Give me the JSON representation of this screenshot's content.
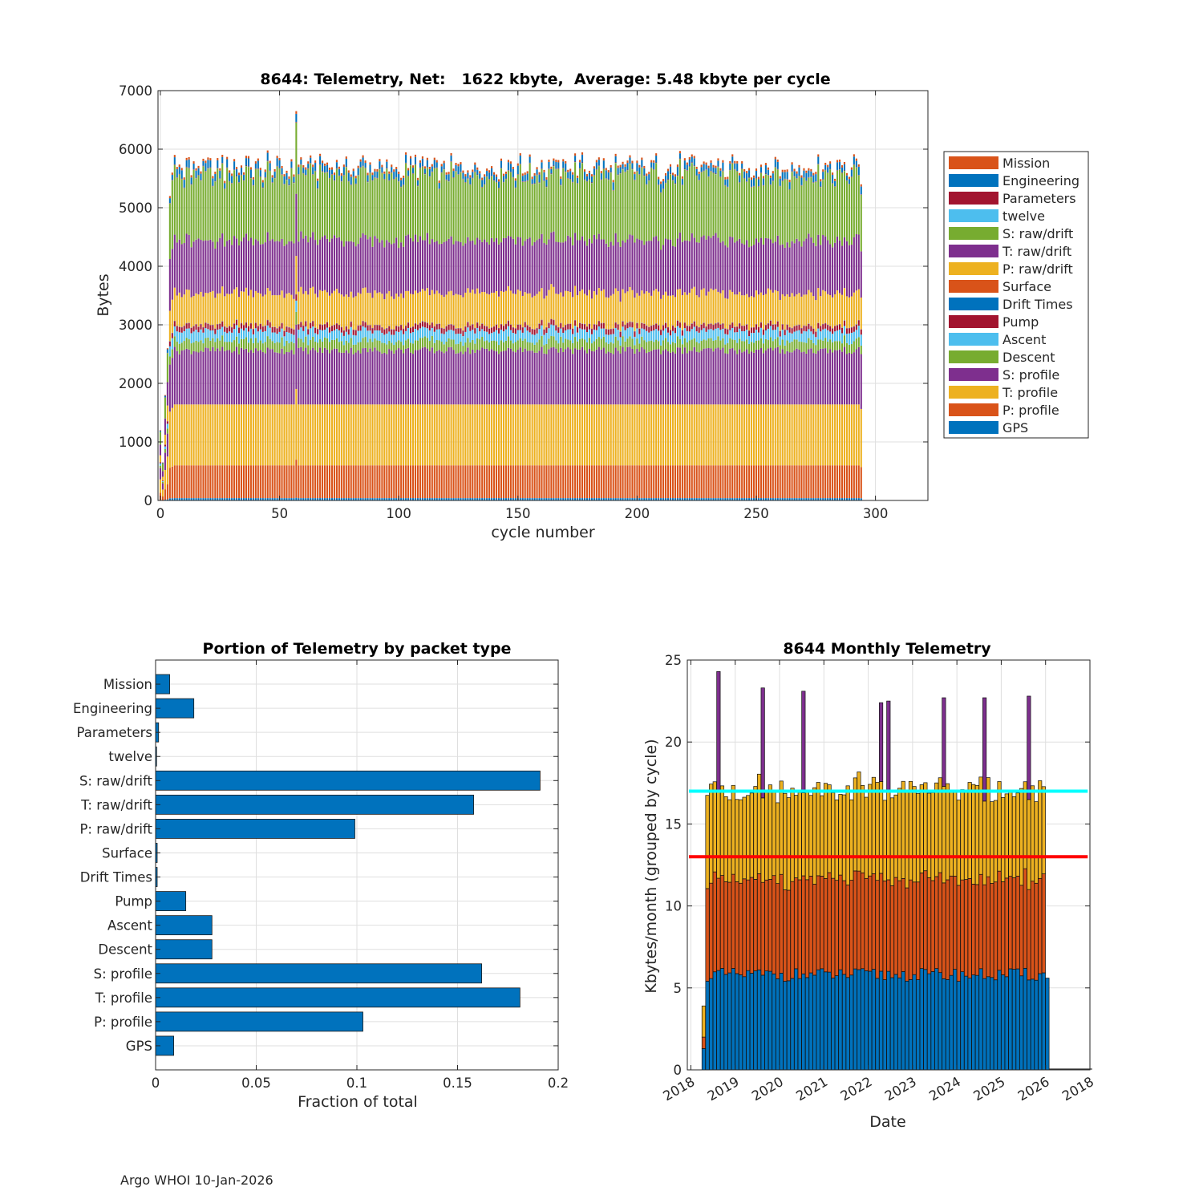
{
  "colors": {
    "blue": "#0072BD",
    "orange": "#D95319",
    "yellow": "#EDB120",
    "purple": "#7E2F8E",
    "green": "#77AC30",
    "cyan": "#4DBEEE",
    "maroon": "#A2142F",
    "monthly_cyan_line": "#00FFFF",
    "monthly_red_line": "#FF0000"
  },
  "footer": {
    "text": "Argo WHOI 10-Jan-2026"
  },
  "chart_data": [
    {
      "id": "telemetry_per_cycle",
      "type": "bar",
      "stacked": true,
      "title": "8644: Telemetry, Net:   1622 kbyte,  Average: 5.48 kbyte per cycle",
      "xlabel": "cycle number",
      "ylabel": "Bytes",
      "xlim": [
        -1,
        322
      ],
      "ylim": [
        0,
        7000
      ],
      "xticks": [
        0,
        50,
        100,
        150,
        200,
        250,
        300
      ],
      "yticks": [
        0,
        1000,
        2000,
        3000,
        4000,
        5000,
        6000,
        7000
      ],
      "grid": true,
      "legend_position": "outside-right",
      "n_cycles": 294,
      "series_order_bottom_to_top": [
        "GPS",
        "P: profile",
        "T: profile",
        "S: profile",
        "Descent",
        "Ascent",
        "Pump",
        "Drift Times",
        "Surface",
        "P: raw/drift",
        "T: raw/drift",
        "S: raw/drift",
        "twelve",
        "Parameters",
        "Engineering",
        "Mission"
      ],
      "legend": [
        {
          "label": "Mission",
          "color": "#D95319"
        },
        {
          "label": "Engineering",
          "color": "#0072BD"
        },
        {
          "label": "Parameters",
          "color": "#A2142F"
        },
        {
          "label": "twelve",
          "color": "#4DBEEE"
        },
        {
          "label": "S: raw/drift",
          "color": "#77AC30"
        },
        {
          "label": "T: raw/drift",
          "color": "#7E2F8E"
        },
        {
          "label": "P: raw/drift",
          "color": "#EDB120"
        },
        {
          "label": "Surface",
          "color": "#D95319"
        },
        {
          "label": "Drift Times",
          "color": "#0072BD"
        },
        {
          "label": "Pump",
          "color": "#A2142F"
        },
        {
          "label": "Ascent",
          "color": "#4DBEEE"
        },
        {
          "label": "Descent",
          "color": "#77AC30"
        },
        {
          "label": "S: profile",
          "color": "#7E2F8E"
        },
        {
          "label": "T: profile",
          "color": "#EDB120"
        },
        {
          "label": "P: profile",
          "color": "#D95319"
        },
        {
          "label": "GPS",
          "color": "#0072BD"
        }
      ],
      "typical_segment_bytes": {
        "GPS": 40,
        "P: profile": 560,
        "T: profile": 1040,
        "S: profile": 930,
        "Descent": 165,
        "Ascent": 165,
        "Pump": 90,
        "Drift Times": 4,
        "Surface": 4,
        "P: raw/drift": 560,
        "T: raw/drift": 900,
        "S: raw/drift": 1080,
        "twelve": 3,
        "Parameters": 8,
        "Engineering": 110,
        "Mission": 40
      },
      "approx_cycle_totals": {
        "early_cycles": [
          [
            0,
            1200
          ],
          [
            1,
            650
          ],
          [
            2,
            1800
          ],
          [
            3,
            2600
          ],
          [
            4,
            5200
          ],
          [
            5,
            5600
          ]
        ],
        "typical_range": [
          5000,
          6000
        ],
        "peak": [
          57,
          6650
        ],
        "last_cycle": [
          294,
          5400
        ]
      }
    },
    {
      "id": "portion_by_packet_type",
      "type": "bar",
      "orientation": "horizontal",
      "title": "Portion of Telemetry by packet type",
      "xlabel": "Fraction of total",
      "ylabel": "",
      "xlim": [
        0,
        0.2
      ],
      "xticks": [
        0,
        0.05,
        0.1,
        0.15,
        0.2
      ],
      "xtick_labels": [
        "0",
        "0.05",
        "0.1",
        "0.15",
        "0.2"
      ],
      "grid": true,
      "color": "#0072BD",
      "categories": [
        "Mission",
        "Engineering",
        "Parameters",
        "twelve",
        "S: raw/drift",
        "T: raw/drift",
        "P: raw/drift",
        "Surface",
        "Drift Times",
        "Pump",
        "Ascent",
        "Descent",
        "S: profile",
        "T: profile",
        "P: profile",
        "GPS"
      ],
      "values": [
        0.007,
        0.019,
        0.0015,
        0.0005,
        0.191,
        0.158,
        0.099,
        0.0008,
        0.0008,
        0.015,
        0.028,
        0.028,
        0.162,
        0.181,
        0.103,
        0.009
      ]
    },
    {
      "id": "monthly_telemetry",
      "type": "bar",
      "stacked": true,
      "title": "8644 Monthly Telemetry",
      "xlabel": "Date",
      "ylabel": "Kbytes/month (grouped by cycle)",
      "ylim": [
        0,
        25
      ],
      "yticks": [
        0,
        5,
        10,
        15,
        20,
        25
      ],
      "x_tick_labels": [
        "2018",
        "2019",
        "2020",
        "2021",
        "2022",
        "2023",
        "2024",
        "2025",
        "2026",
        "2018"
      ],
      "x_range_years": [
        2017.92,
        2027.0
      ],
      "grid": true,
      "series_colors": {
        "base": "#0072BD",
        "middle": "#D95319",
        "top": "#EDB120",
        "spike": "#7E2F8E"
      },
      "reference_lines": [
        {
          "name": "upper",
          "y": 17,
          "color": "#00FFFF"
        },
        {
          "name": "lower",
          "y": 13,
          "color": "#FF0000"
        }
      ],
      "first_month": "2018-04",
      "n_months": 94,
      "typical_stack_kbytes": {
        "base": 5.8,
        "middle": 5.8,
        "top": 5.5
      },
      "spike_months": [
        {
          "month_index": 4,
          "total": 24.3
        },
        {
          "month_index": 16,
          "total": 23.3
        },
        {
          "month_index": 27,
          "total": 23.1
        },
        {
          "month_index": 48,
          "total": 22.4
        },
        {
          "month_index": 50,
          "total": 22.5
        },
        {
          "month_index": 65,
          "total": 22.7
        },
        {
          "month_index": 76,
          "total": 22.7
        },
        {
          "month_index": 88,
          "total": 22.8
        }
      ]
    }
  ]
}
